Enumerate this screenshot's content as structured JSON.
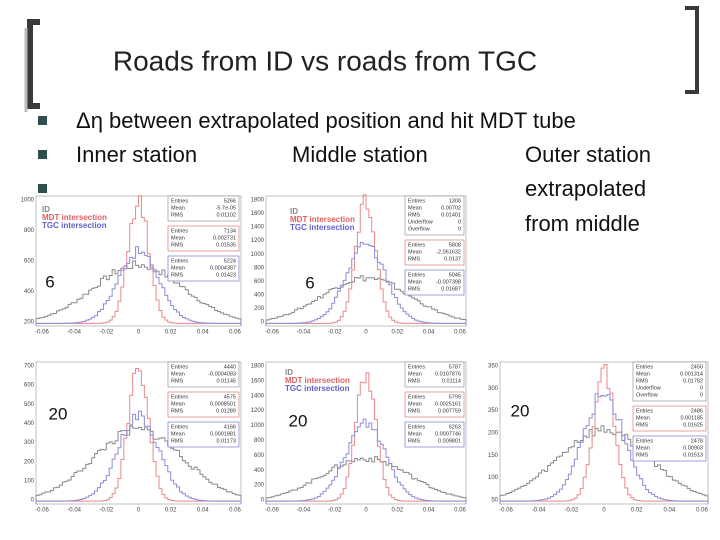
{
  "slide": {
    "title": "Roads from ID vs roads from TGC",
    "bullet": "Δη between extrapolated position and hit MDT tube",
    "columns": [
      "Inner station",
      "Middle station",
      "Outer station"
    ],
    "outer_note": [
      "extrapolated",
      "from middle"
    ],
    "panels": [
      {
        "label": "6",
        "legend": [
          "ID",
          "MDT intersection",
          "TGC intersection"
        ],
        "yticks": [
          "1000",
          "800",
          "600",
          "400",
          "200"
        ],
        "xticks": [
          "-0.06",
          "-0.04",
          "-0.02",
          "0",
          "0.02",
          "0.04",
          "0.06"
        ],
        "stats": [
          [
            [
              "Entries",
              "5266"
            ],
            [
              "Mean",
              "-5.7e-05"
            ],
            [
              "RMS",
              "0.01102"
            ]
          ],
          [
            [
              "Entries",
              "7134"
            ],
            [
              "Mean",
              "0.002731"
            ],
            [
              "RMS",
              "0.01535"
            ]
          ],
          [
            [
              "Entries",
              "5224"
            ],
            [
              "Mean",
              "0.0004387"
            ],
            [
              "RMS",
              "0.01423"
            ]
          ]
        ]
      },
      {
        "label": "6",
        "legend": [
          "ID",
          "MDT intersection",
          "TGC intersection"
        ],
        "yticks": [
          "1800",
          "1600",
          "1400",
          "1200",
          "1000",
          "800",
          "600",
          "400",
          "200",
          "0"
        ],
        "xticks": [
          "-0.06",
          "-0.04",
          "-0.02",
          "0",
          "0.02",
          "0.04",
          "0.06"
        ],
        "stats": [
          [
            [
              "Entries",
              "1300"
            ],
            [
              "Mean",
              "0.00702"
            ],
            [
              "RMS",
              "0.01401"
            ],
            [
              "Underflow",
              "0"
            ],
            [
              "Overflow",
              "0"
            ]
          ],
          [
            [
              "Entries",
              "5808"
            ],
            [
              "Mean",
              "-2.061632"
            ],
            [
              "RMS",
              "0.0137"
            ]
          ],
          [
            [
              "Entries",
              "5045"
            ],
            [
              "Mean",
              "-0.007398"
            ],
            [
              "RMS",
              "0.01687"
            ]
          ]
        ]
      },
      {
        "label": "20",
        "legend": [],
        "yticks": [
          "700",
          "600",
          "500",
          "400",
          "300",
          "200",
          "100",
          "0"
        ],
        "xticks": [
          "-0.06",
          "-0.04",
          "-0.02",
          "0",
          "0.02",
          "0.04",
          "0.06"
        ],
        "stats": [
          [
            [
              "Entries",
              "4440"
            ],
            [
              "Mean",
              "-0.0004083"
            ],
            [
              "RMS",
              "0.01145"
            ]
          ],
          [
            [
              "Entries",
              "4575"
            ],
            [
              "Mean",
              "0.0008501"
            ],
            [
              "RMS",
              "0.01289"
            ]
          ],
          [
            [
              "Entries",
              "4166"
            ],
            [
              "Mean",
              "0.0001881"
            ],
            [
              "RMS",
              "0.01173"
            ]
          ]
        ]
      },
      {
        "label": "20",
        "legend": [
          "ID",
          "MDT intersection",
          "TGC intersection"
        ],
        "yticks": [
          "1800",
          "1600",
          "1400",
          "1200",
          "1000",
          "800",
          "600",
          "400",
          "200",
          "0"
        ],
        "xticks": [
          "-0.06",
          "-0.04",
          "-0.02",
          "0",
          "0.02",
          "0.04",
          "0.06"
        ],
        "stats": [
          [
            [
              "Entries",
              "5787"
            ],
            [
              "Mean",
              "0.0107876"
            ],
            [
              "RMS",
              "0.01114"
            ]
          ],
          [
            [
              "Entries",
              "5799"
            ],
            [
              "Mean",
              "0.0025161"
            ],
            [
              "RMS",
              "0.007759"
            ]
          ],
          [
            [
              "Entries",
              "6263"
            ],
            [
              "Mean",
              "0.0007746"
            ],
            [
              "RMS",
              "0.009801"
            ]
          ]
        ]
      },
      {
        "label": "20",
        "legend": [],
        "yticks": [
          "350",
          "300",
          "250",
          "200",
          "150",
          "100",
          "50"
        ],
        "xticks": [
          "-0.06",
          "-0.04",
          "-0.02",
          "0",
          "0.02",
          "0.04",
          "0.06"
        ],
        "stats": [
          [
            [
              "Entries",
              "2450"
            ],
            [
              "Mean",
              "0.001314"
            ],
            [
              "RMS",
              "0.01782"
            ],
            [
              "Underflow",
              "0"
            ],
            [
              "Overflow",
              "0"
            ]
          ],
          [
            [
              "Entries",
              "2486"
            ],
            [
              "Mean",
              "0.001185"
            ],
            [
              "RMS",
              "0.01625"
            ]
          ],
          [
            [
              "Entries",
              "2478"
            ],
            [
              "Mean",
              "0.00903"
            ],
            [
              "RMS",
              "0.01513"
            ]
          ]
        ]
      }
    ]
  }
}
